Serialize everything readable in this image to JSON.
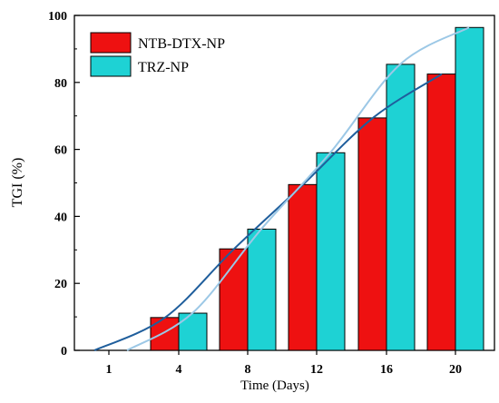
{
  "chart_data": {
    "type": "bar",
    "title": "",
    "xlabel": "Time (Days)",
    "ylabel": "TGI (%)",
    "categories": [
      "1",
      "4",
      "8",
      "12",
      "16",
      "20"
    ],
    "ylim": [
      0,
      100
    ],
    "yticks": [
      0,
      20,
      40,
      60,
      80,
      100
    ],
    "grid": false,
    "legend_position": "top-left",
    "series": [
      {
        "name": "NTB-DTX-NP",
        "color": "#ee1111",
        "values": [
          null,
          9.8,
          30.3,
          49.5,
          69.4,
          82.5
        ],
        "trend_color": "#1f5e9c",
        "trend": [
          0,
          9.8,
          30.3,
          49.5,
          69.4,
          82.5
        ]
      },
      {
        "name": "TRZ-NP",
        "color": "#1ed2d4",
        "values": [
          null,
          11.1,
          36.2,
          59.0,
          85.4,
          96.4
        ],
        "trend_color": "#9cc8e6",
        "trend": [
          0,
          11.1,
          36.2,
          59.0,
          85.4,
          96.4
        ]
      }
    ]
  }
}
